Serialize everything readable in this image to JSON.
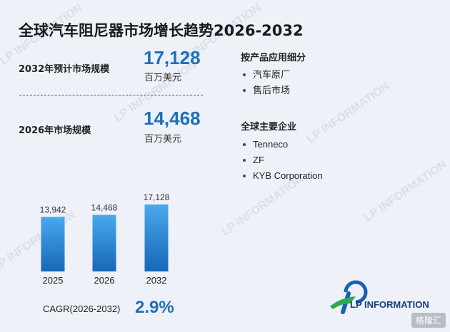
{
  "title": "全球汽车阻尼器市场增长趋势2026-2032",
  "metrics": {
    "m2032": {
      "label": "2032年预计市场规模",
      "value": "17,128",
      "unit": "百万美元"
    },
    "m2026": {
      "label": "2026年市场规模",
      "value": "14,468",
      "unit": "百万美元"
    }
  },
  "segments": {
    "title": "按产品应用细分",
    "items": [
      "汽车原厂",
      "售后市场"
    ]
  },
  "companies": {
    "title": "全球主要企业",
    "items": [
      "Tenneco",
      "ZF",
      "KYB Corporation"
    ]
  },
  "cagr": {
    "label": "CAGR(2026-2032)",
    "value": "2.9%"
  },
  "logo": {
    "text": "LP INFORMATION"
  },
  "watermark": "LP INFORMATION",
  "badge": "格隆汇",
  "colors": {
    "accent": "#1f6fb8",
    "bar_top": "#4aa8ec",
    "bar_bottom": "#1668b8"
  },
  "chart_data": {
    "type": "bar",
    "categories": [
      "2025",
      "2026",
      "2032"
    ],
    "values": [
      13942,
      14468,
      17128
    ],
    "value_labels": [
      "13,942",
      "14,468",
      "17,128"
    ],
    "ylim": [
      0,
      17128
    ],
    "grid": false
  }
}
